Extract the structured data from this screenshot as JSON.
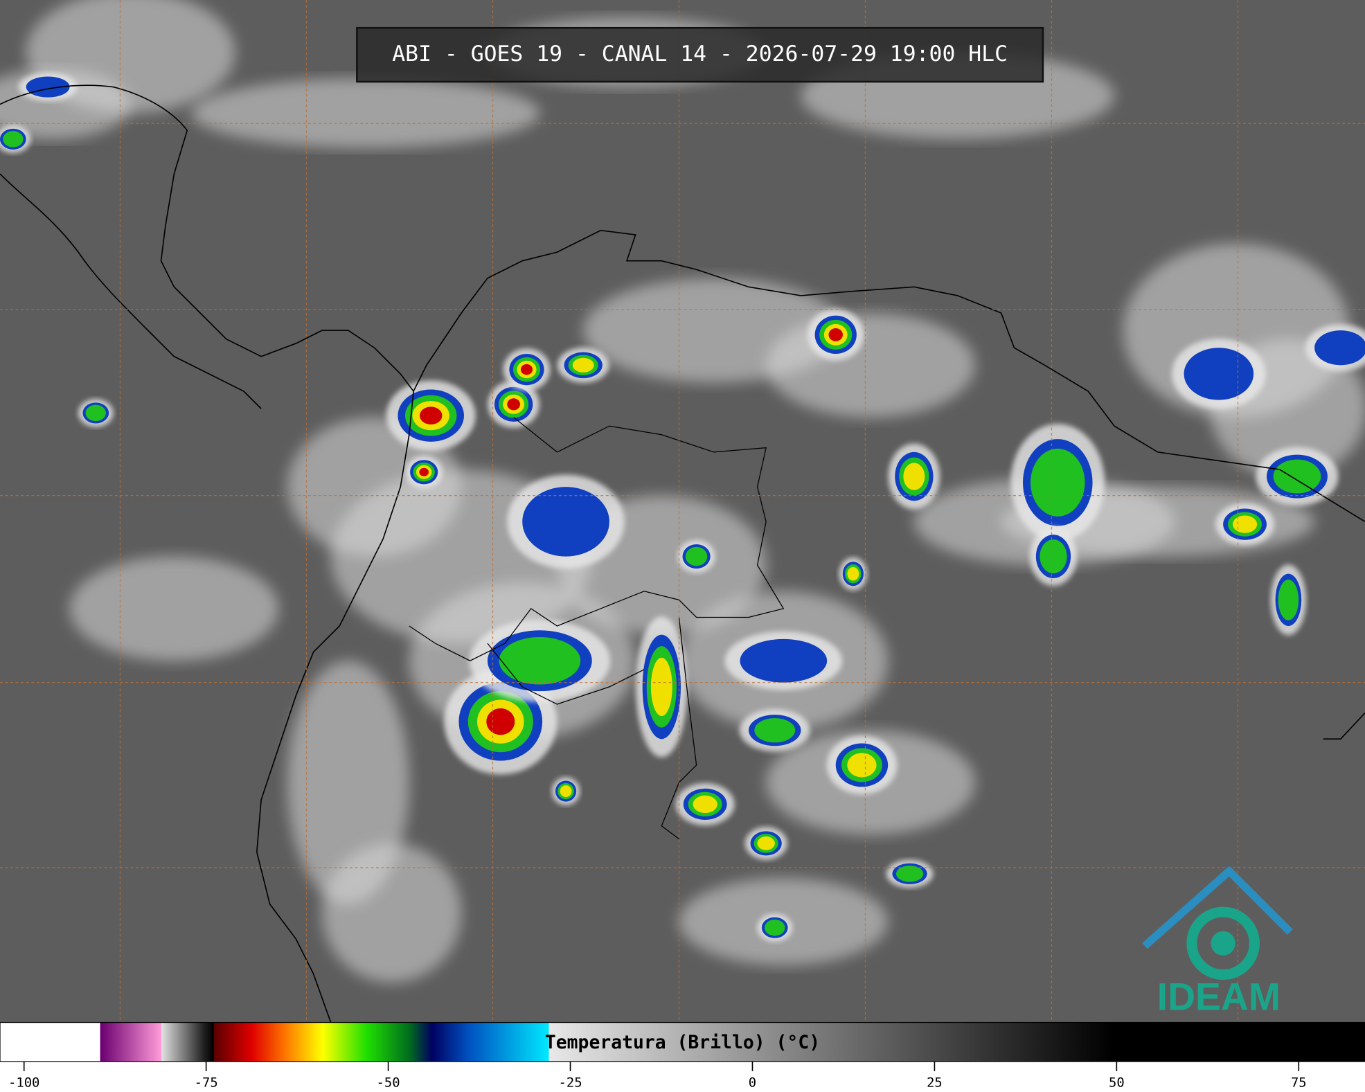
{
  "title": "ABI - GOES 19 - CANAL 14 - 2026-07-29 19:00 HLC",
  "logo_text": "IDEAM",
  "colorbar": {
    "label": "Temperatura (Brillo) (°C)",
    "lim": [
      -103.3,
      84.1
    ],
    "ticks": [
      -100,
      -75,
      -50,
      -25,
      0,
      25,
      50,
      75
    ],
    "colormap": [
      {
        "value": -103.3,
        "color": "#ffffff"
      },
      {
        "value": -89.6,
        "color": "#ffffff"
      },
      {
        "value": -89.5,
        "color": "#6a0070"
      },
      {
        "value": -81.2,
        "color": "#ff9ad8"
      },
      {
        "value": -81.1,
        "color": "#e0e0e0"
      },
      {
        "value": -75.3,
        "color": "#202020"
      },
      {
        "value": -74.0,
        "color": "#000000"
      },
      {
        "value": -73.9,
        "color": "#5a0000"
      },
      {
        "value": -68.7,
        "color": "#e00000"
      },
      {
        "value": -64.0,
        "color": "#ff7a00"
      },
      {
        "value": -59.0,
        "color": "#ffff00"
      },
      {
        "value": -53.0,
        "color": "#20e000"
      },
      {
        "value": -47.0,
        "color": "#006a20"
      },
      {
        "value": -44.0,
        "color": "#000060"
      },
      {
        "value": -39.0,
        "color": "#0050c0"
      },
      {
        "value": -28.0,
        "color": "#00e8ff"
      },
      {
        "value": -27.9,
        "color": "#e8e8e8"
      },
      {
        "value": 49.5,
        "color": "#000000"
      },
      {
        "value": 84.1,
        "color": "#000000"
      }
    ]
  }
}
